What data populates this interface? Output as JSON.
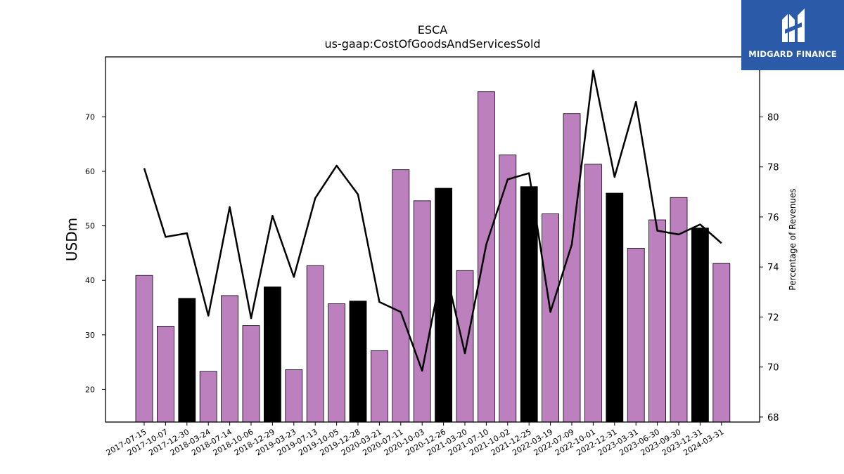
{
  "chart_data": {
    "type": "bar",
    "title": "ESCA",
    "subtitle": "us-gaap:CostOfGoodsAndServicesSold",
    "ylabel": "USDm",
    "y2label": "Percentage of Revenues",
    "ylim": [
      14,
      81
    ],
    "y2lim": [
      67.8,
      82.4
    ],
    "yticks": [
      20,
      30,
      40,
      50,
      60,
      70
    ],
    "y2ticks": [
      68,
      70,
      72,
      74,
      76,
      78,
      80
    ],
    "categories": [
      "2017-07-15",
      "2017-10-07",
      "2017-12-30",
      "2018-03-24",
      "2018-07-14",
      "2018-10-06",
      "2018-12-29",
      "2019-03-23",
      "2019-07-13",
      "2019-10-05",
      "2019-12-28",
      "2020-03-21",
      "2020-07-11",
      "2020-10-03",
      "2020-12-26",
      "2021-03-20",
      "2021-07-10",
      "2021-10-02",
      "2021-12-25",
      "2022-03-19",
      "2022-07-09",
      "2022-10-01",
      "2022-12-31",
      "2023-03-31",
      "2023-06-30",
      "2023-09-30",
      "2023-12-31",
      "2024-03-31"
    ],
    "series": [
      {
        "type": "bar",
        "axis": "left",
        "values": [
          40.9,
          31.6,
          36.7,
          23.3,
          37.2,
          31.7,
          38.8,
          23.6,
          42.7,
          35.7,
          36.2,
          27.1,
          60.3,
          54.6,
          56.9,
          41.8,
          74.6,
          63.0,
          57.2,
          52.2,
          70.6,
          61.3,
          56.0,
          45.9,
          51.1,
          55.2,
          49.6,
          43.1
        ],
        "highlight": [
          false,
          false,
          true,
          false,
          false,
          false,
          true,
          false,
          false,
          false,
          true,
          false,
          false,
          false,
          true,
          false,
          false,
          false,
          true,
          false,
          false,
          false,
          true,
          false,
          false,
          false,
          true,
          false
        ]
      },
      {
        "type": "line",
        "axis": "right",
        "values": [
          77.95,
          75.2,
          75.35,
          72.05,
          76.4,
          71.95,
          76.05,
          73.6,
          76.75,
          78.05,
          76.9,
          72.6,
          72.2,
          69.85,
          74.25,
          70.55,
          74.9,
          77.5,
          77.75,
          72.2,
          74.9,
          81.85,
          77.6,
          80.6,
          75.45,
          75.3,
          75.7,
          74.95
        ]
      }
    ],
    "colors": {
      "bar": "#bb80bd",
      "bar_highlight": "#000000",
      "line": "#000000"
    }
  },
  "logo": {
    "text": "MIDGARD FINANCE",
    "background": "#2b5aa8"
  }
}
